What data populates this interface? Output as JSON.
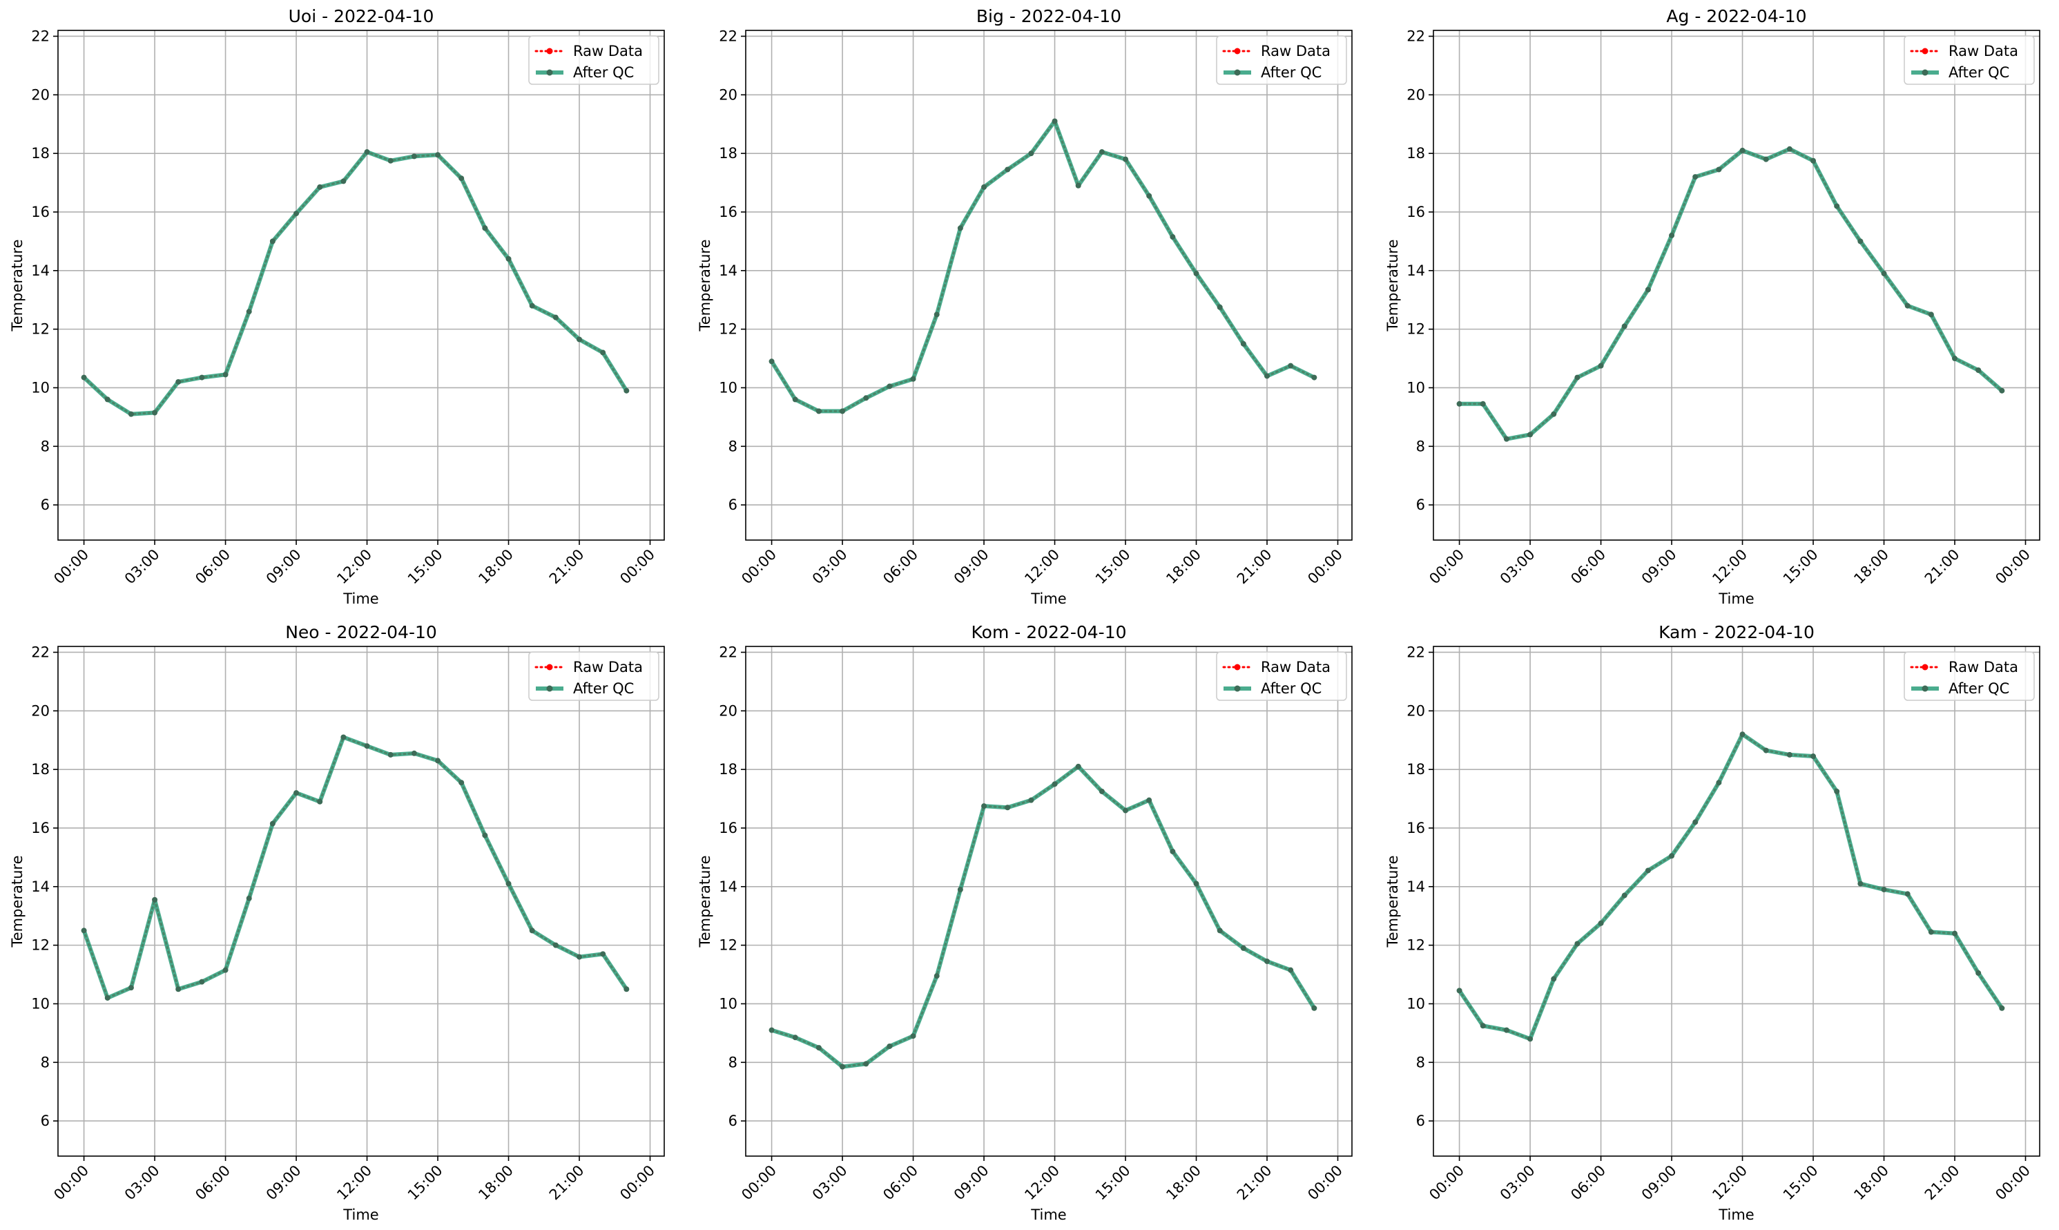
{
  "colors": {
    "raw": "#ff0000",
    "qc": "#2a9d7a",
    "qc_marker": "#3d6b57",
    "grid": "#b0b0b0",
    "spine": "#000000"
  },
  "chart_data": [
    {
      "type": "line",
      "title": "Uoi - 2022-04-10",
      "xlabel": "Time",
      "ylabel": "Temperature",
      "x_ticks": [
        "00:00",
        "03:00",
        "06:00",
        "09:00",
        "12:00",
        "15:00",
        "18:00",
        "21:00",
        "00:00"
      ],
      "y_ticks": [
        "6",
        "8",
        "10",
        "12",
        "14",
        "16",
        "18",
        "20",
        "22"
      ],
      "ylim": [
        4.8,
        22.2
      ],
      "grid": true,
      "legend_position": "top-right",
      "x": [
        0,
        1,
        2,
        3,
        4,
        5,
        6,
        7,
        8,
        9,
        10,
        11,
        12,
        13,
        14,
        15,
        16,
        17,
        18,
        19,
        20,
        21,
        22,
        23
      ],
      "series": [
        {
          "name": "Raw Data",
          "values": [
            10.35,
            9.6,
            9.1,
            9.15,
            10.2,
            10.35,
            10.45,
            12.6,
            15.0,
            15.95,
            16.85,
            17.05,
            18.05,
            17.75,
            17.9,
            17.95,
            17.15,
            15.45,
            14.4,
            12.8,
            12.4,
            11.65,
            11.2,
            9.9
          ]
        },
        {
          "name": "After QC",
          "values": [
            10.35,
            9.6,
            9.1,
            9.15,
            10.2,
            10.35,
            10.45,
            12.6,
            15.0,
            15.95,
            16.85,
            17.05,
            18.05,
            17.75,
            17.9,
            17.95,
            17.15,
            15.45,
            14.4,
            12.8,
            12.4,
            11.65,
            11.2,
            9.9
          ]
        }
      ]
    },
    {
      "type": "line",
      "title": "Big - 2022-04-10",
      "xlabel": "Time",
      "ylabel": "Temperature",
      "x_ticks": [
        "00:00",
        "03:00",
        "06:00",
        "09:00",
        "12:00",
        "15:00",
        "18:00",
        "21:00",
        "00:00"
      ],
      "y_ticks": [
        "6",
        "8",
        "10",
        "12",
        "14",
        "16",
        "18",
        "20",
        "22"
      ],
      "ylim": [
        4.8,
        22.2
      ],
      "grid": true,
      "legend_position": "top-right",
      "x": [
        0,
        1,
        2,
        3,
        4,
        5,
        6,
        7,
        8,
        9,
        10,
        11,
        12,
        13,
        14,
        15,
        16,
        17,
        18,
        19,
        20,
        21,
        22,
        23
      ],
      "series": [
        {
          "name": "Raw Data",
          "values": [
            10.9,
            9.6,
            9.2,
            9.2,
            9.65,
            10.05,
            10.3,
            12.5,
            15.45,
            16.85,
            17.45,
            18.0,
            19.1,
            16.9,
            18.05,
            17.8,
            16.55,
            15.15,
            13.9,
            12.75,
            11.5,
            10.4,
            10.75,
            10.35
          ]
        },
        {
          "name": "After QC",
          "values": [
            10.9,
            9.6,
            9.2,
            9.2,
            9.65,
            10.05,
            10.3,
            12.5,
            15.45,
            16.85,
            17.45,
            18.0,
            19.1,
            16.9,
            18.05,
            17.8,
            16.55,
            15.15,
            13.9,
            12.75,
            11.5,
            10.4,
            10.75,
            10.35
          ]
        }
      ]
    },
    {
      "type": "line",
      "title": "Ag - 2022-04-10",
      "xlabel": "Time",
      "ylabel": "Temperature",
      "x_ticks": [
        "00:00",
        "03:00",
        "06:00",
        "09:00",
        "12:00",
        "15:00",
        "18:00",
        "21:00",
        "00:00"
      ],
      "y_ticks": [
        "6",
        "8",
        "10",
        "12",
        "14",
        "16",
        "18",
        "20",
        "22"
      ],
      "ylim": [
        4.8,
        22.2
      ],
      "grid": true,
      "legend_position": "top-right",
      "x": [
        0,
        1,
        2,
        3,
        4,
        5,
        6,
        7,
        8,
        9,
        10,
        11,
        12,
        13,
        14,
        15,
        16,
        17,
        18,
        19,
        20,
        21,
        22,
        23
      ],
      "series": [
        {
          "name": "Raw Data",
          "values": [
            9.45,
            9.45,
            8.25,
            8.4,
            9.1,
            10.35,
            10.75,
            12.1,
            13.35,
            15.2,
            17.2,
            17.45,
            18.1,
            17.8,
            18.15,
            17.75,
            16.2,
            15.0,
            13.9,
            12.8,
            12.5,
            11.0,
            10.6,
            9.9
          ]
        },
        {
          "name": "After QC",
          "values": [
            9.45,
            9.45,
            8.25,
            8.4,
            9.1,
            10.35,
            10.75,
            12.1,
            13.35,
            15.2,
            17.2,
            17.45,
            18.1,
            17.8,
            18.15,
            17.75,
            16.2,
            15.0,
            13.9,
            12.8,
            12.5,
            11.0,
            10.6,
            9.9
          ]
        }
      ]
    },
    {
      "type": "line",
      "title": "Neo - 2022-04-10",
      "xlabel": "Time",
      "ylabel": "Temperature",
      "x_ticks": [
        "00:00",
        "03:00",
        "06:00",
        "09:00",
        "12:00",
        "15:00",
        "18:00",
        "21:00",
        "00:00"
      ],
      "y_ticks": [
        "6",
        "8",
        "10",
        "12",
        "14",
        "16",
        "18",
        "20",
        "22"
      ],
      "ylim": [
        4.8,
        22.2
      ],
      "grid": true,
      "legend_position": "top-right",
      "x": [
        0,
        1,
        2,
        3,
        4,
        5,
        6,
        7,
        8,
        9,
        10,
        11,
        12,
        13,
        14,
        15,
        16,
        17,
        18,
        19,
        20,
        21,
        22,
        23
      ],
      "series": [
        {
          "name": "Raw Data",
          "values": [
            12.5,
            10.2,
            10.55,
            13.55,
            10.5,
            10.75,
            11.15,
            13.6,
            16.15,
            17.2,
            16.9,
            19.1,
            18.8,
            18.5,
            18.55,
            18.3,
            17.55,
            15.75,
            14.1,
            12.5,
            12.0,
            11.6,
            11.7,
            10.5
          ]
        },
        {
          "name": "After QC",
          "values": [
            12.5,
            10.2,
            10.55,
            13.55,
            10.5,
            10.75,
            11.15,
            13.6,
            16.15,
            17.2,
            16.9,
            19.1,
            18.8,
            18.5,
            18.55,
            18.3,
            17.55,
            15.75,
            14.1,
            12.5,
            12.0,
            11.6,
            11.7,
            10.5
          ]
        }
      ]
    },
    {
      "type": "line",
      "title": "Kom - 2022-04-10",
      "xlabel": "Time",
      "ylabel": "Temperature",
      "x_ticks": [
        "00:00",
        "03:00",
        "06:00",
        "09:00",
        "12:00",
        "15:00",
        "18:00",
        "21:00",
        "00:00"
      ],
      "y_ticks": [
        "6",
        "8",
        "10",
        "12",
        "14",
        "16",
        "18",
        "20",
        "22"
      ],
      "ylim": [
        4.8,
        22.2
      ],
      "grid": true,
      "legend_position": "top-right",
      "x": [
        0,
        1,
        2,
        3,
        4,
        5,
        6,
        7,
        8,
        9,
        10,
        11,
        12,
        13,
        14,
        15,
        16,
        17,
        18,
        19,
        20,
        21,
        22,
        23
      ],
      "series": [
        {
          "name": "Raw Data",
          "values": [
            9.1,
            8.85,
            8.5,
            7.85,
            7.95,
            8.55,
            8.9,
            10.95,
            13.9,
            16.75,
            16.7,
            16.95,
            17.5,
            18.1,
            17.25,
            16.6,
            16.95,
            15.2,
            14.1,
            12.5,
            11.9,
            11.45,
            11.15,
            9.85
          ]
        },
        {
          "name": "After QC",
          "values": [
            9.1,
            8.85,
            8.5,
            7.85,
            7.95,
            8.55,
            8.9,
            10.95,
            13.9,
            16.75,
            16.7,
            16.95,
            17.5,
            18.1,
            17.25,
            16.6,
            16.95,
            15.2,
            14.1,
            12.5,
            11.9,
            11.45,
            11.15,
            9.85
          ]
        }
      ]
    },
    {
      "type": "line",
      "title": "Kam - 2022-04-10",
      "xlabel": "Time",
      "ylabel": "Temperature",
      "x_ticks": [
        "00:00",
        "03:00",
        "06:00",
        "09:00",
        "12:00",
        "15:00",
        "18:00",
        "21:00",
        "00:00"
      ],
      "y_ticks": [
        "6",
        "8",
        "10",
        "12",
        "14",
        "16",
        "18",
        "20",
        "22"
      ],
      "ylim": [
        4.8,
        22.2
      ],
      "grid": true,
      "legend_position": "top-right",
      "x": [
        0,
        1,
        2,
        3,
        4,
        5,
        6,
        7,
        8,
        9,
        10,
        11,
        12,
        13,
        14,
        15,
        16,
        17,
        18,
        19,
        20,
        21,
        22,
        23
      ],
      "series": [
        {
          "name": "Raw Data",
          "values": [
            10.45,
            9.25,
            9.1,
            8.8,
            10.85,
            12.05,
            12.75,
            13.7,
            14.55,
            15.05,
            16.2,
            17.55,
            19.2,
            18.65,
            18.5,
            18.45,
            17.25,
            14.1,
            13.9,
            13.75,
            12.45,
            12.4,
            11.05,
            9.85
          ]
        },
        {
          "name": "After QC",
          "values": [
            10.45,
            9.25,
            9.1,
            8.8,
            10.85,
            12.05,
            12.75,
            13.7,
            14.55,
            15.05,
            16.2,
            17.55,
            19.2,
            18.65,
            18.5,
            18.45,
            17.25,
            14.1,
            13.9,
            13.75,
            12.45,
            12.4,
            11.05,
            9.85
          ]
        }
      ]
    }
  ]
}
